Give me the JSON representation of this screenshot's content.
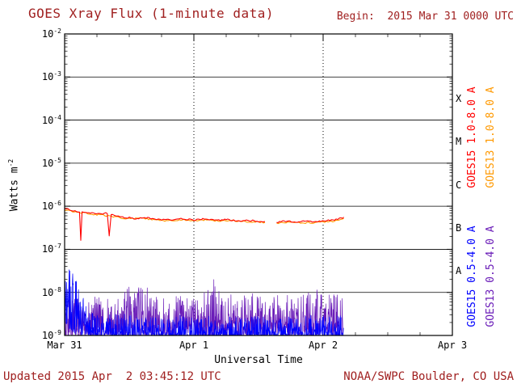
{
  "header": {
    "title": "GOES Xray Flux (1-minute data)",
    "begin_label": "Begin:  2015 Mar 31 0000 UTC"
  },
  "footer": {
    "updated": "Updated 2015 Apr  2 03:45:12 UTC",
    "source": "NOAA/SWPC Boulder, CO USA"
  },
  "colors": {
    "background": "#ffffff",
    "axis": "#000000",
    "title_text": "#a02020",
    "footer_text": "#a02020"
  },
  "chart_data": {
    "type": "line",
    "title": "GOES Xray Flux (1-minute data)",
    "subtitle_begin": "Begin:  2015 Mar 31 0000 UTC",
    "xlabel": "Universal Time",
    "ylabel": "Watts m-2",
    "x_axis": {
      "tick_labels": [
        "Mar 31",
        "Apr 1",
        "Apr 2",
        "Apr 3"
      ],
      "range_days": [
        0,
        3
      ],
      "minor_tick_hours": 6
    },
    "y_axis": {
      "scale": "log",
      "tick_base": "10",
      "tick_exponents": [
        -2,
        -3,
        -4,
        -5,
        -6,
        -7,
        -8,
        -9
      ],
      "unit_prefix": "Watts m",
      "unit_exponent": "-2",
      "range": [
        1e-09,
        0.01
      ]
    },
    "gridlines": {
      "horizontal_exponents": [
        -3,
        -4,
        -5,
        -6,
        -7,
        -8
      ],
      "vertical_days": [
        1,
        2
      ],
      "horizontal_style": "solid",
      "vertical_style": "dotted"
    },
    "flare_classes": [
      {
        "label": "X",
        "midpoint_exponent": -3.5
      },
      {
        "label": "M",
        "midpoint_exponent": -4.5
      },
      {
        "label": "C",
        "midpoint_exponent": -5.5
      },
      {
        "label": "B",
        "midpoint_exponent": -6.5
      },
      {
        "label": "A",
        "midpoint_exponent": -7.5
      }
    ],
    "data_end_day": 2.16,
    "series": [
      {
        "name": "GOES15 1.0-8.0 A",
        "color": "#ff0000",
        "channel": "long",
        "segments": [
          [
            [
              0.0,
              9e-07
            ],
            [
              0.04,
              8.2e-07
            ],
            [
              0.08,
              7.8e-07
            ],
            [
              0.115,
              7.5e-07
            ],
            [
              0.125,
              1.6e-07
            ],
            [
              0.135,
              7.2e-07
            ],
            [
              0.2,
              7e-07
            ],
            [
              0.27,
              6.6e-07
            ],
            [
              0.33,
              6.9e-07
            ],
            [
              0.345,
              2.1e-07
            ],
            [
              0.36,
              6.3e-07
            ],
            [
              0.45,
              5.6e-07
            ],
            [
              0.55,
              5.2e-07
            ],
            [
              0.62,
              5.5e-07
            ],
            [
              0.7,
              5e-07
            ],
            [
              0.8,
              4.8e-07
            ],
            [
              0.9,
              5.1e-07
            ],
            [
              1.0,
              4.8e-07
            ],
            [
              1.08,
              5.1e-07
            ],
            [
              1.17,
              4.7e-07
            ],
            [
              1.25,
              4.9e-07
            ],
            [
              1.33,
              4.6e-07
            ],
            [
              1.42,
              4.7e-07
            ],
            [
              1.5,
              4.5e-07
            ],
            [
              1.55,
              4.4e-07
            ]
          ],
          [
            [
              1.64,
              4.3e-07
            ],
            [
              1.72,
              4.5e-07
            ],
            [
              1.8,
              4.3e-07
            ],
            [
              1.88,
              4.5e-07
            ],
            [
              1.96,
              4.4e-07
            ],
            [
              2.04,
              4.7e-07
            ],
            [
              2.1,
              4.9e-07
            ],
            [
              2.14,
              5.3e-07
            ],
            [
              2.16,
              5.6e-07
            ]
          ]
        ]
      },
      {
        "name": "GOES13 1.0-8.0 A",
        "color": "#ff9900",
        "channel": "long",
        "segments": [
          [
            [
              0.0,
              8e-07
            ],
            [
              0.06,
              7.6e-07
            ],
            [
              0.12,
              7.2e-07
            ],
            [
              0.2,
              6.6e-07
            ],
            [
              0.3,
              6.2e-07
            ],
            [
              0.4,
              5.6e-07
            ],
            [
              0.5,
              5.1e-07
            ],
            [
              0.6,
              5.3e-07
            ],
            [
              0.7,
              4.8e-07
            ],
            [
              0.8,
              4.6e-07
            ],
            [
              0.9,
              4.9e-07
            ],
            [
              1.0,
              4.6e-07
            ],
            [
              1.1,
              4.8e-07
            ],
            [
              1.2,
              4.5e-07
            ],
            [
              1.3,
              4.6e-07
            ],
            [
              1.4,
              4.4e-07
            ],
            [
              1.5,
              4.3e-07
            ],
            [
              1.55,
              4.2e-07
            ]
          ],
          [
            [
              1.64,
              4.1e-07
            ],
            [
              1.75,
              4.3e-07
            ],
            [
              1.85,
              4.1e-07
            ],
            [
              1.95,
              4.2e-07
            ],
            [
              2.05,
              4.4e-07
            ],
            [
              2.12,
              4.7e-07
            ],
            [
              2.16,
              5.2e-07
            ]
          ]
        ]
      },
      {
        "name": "GOES15 0.5-4.0 A",
        "color": "#0000ff",
        "channel": "short",
        "band": [
          [
            0.0,
            2e-09,
            2.8e-08
          ],
          [
            0.03,
            1.5e-09,
            4.2e-08
          ],
          [
            0.06,
            1.2e-09,
            3e-08
          ],
          [
            0.1,
            1e-09,
            1.8e-08
          ],
          [
            0.14,
            1e-09,
            8e-09
          ],
          [
            0.2,
            9e-10,
            4e-09
          ],
          [
            0.3,
            9e-10,
            3e-09
          ],
          [
            0.4,
            9e-10,
            3.5e-09
          ],
          [
            0.5,
            9e-10,
            3e-09
          ],
          [
            0.6,
            9e-10,
            2.5e-09
          ],
          [
            0.7,
            9e-10,
            3e-09
          ],
          [
            0.8,
            9e-10,
            2.5e-09
          ],
          [
            0.9,
            9e-10,
            3e-09
          ],
          [
            1.0,
            9e-10,
            2.5e-09
          ],
          [
            1.1,
            9e-10,
            3e-09
          ],
          [
            1.2,
            9e-10,
            2.5e-09
          ],
          [
            1.3,
            9e-10,
            3e-09
          ],
          [
            1.4,
            9e-10,
            2.5e-09
          ],
          [
            1.5,
            9e-10,
            3e-09
          ],
          [
            1.6,
            9e-10,
            2.5e-09
          ],
          [
            1.7,
            9e-10,
            3e-09
          ],
          [
            1.8,
            9e-10,
            2.5e-09
          ],
          [
            1.9,
            9e-10,
            3e-09
          ],
          [
            2.0,
            9e-10,
            3.5e-09
          ],
          [
            2.16,
            9e-10,
            3e-09
          ]
        ]
      },
      {
        "name": "GOES13 0.5-4.0 A",
        "color": "#6a1cb8",
        "channel": "short",
        "band": [
          [
            0.0,
            1e-09,
            8e-09
          ],
          [
            0.05,
            1e-09,
            1e-08
          ],
          [
            0.1,
            1e-09,
            9e-09
          ],
          [
            0.15,
            1e-09,
            7e-09
          ],
          [
            0.2,
            1e-09,
            8e-09
          ],
          [
            0.25,
            1e-09,
            9e-09
          ],
          [
            0.3,
            1e-09,
            7e-09
          ],
          [
            0.35,
            1e-09,
            8e-09
          ],
          [
            0.4,
            1e-09,
            9e-09
          ],
          [
            0.45,
            1e-09,
            1.2e-08
          ],
          [
            0.5,
            1e-09,
            1.5e-08
          ],
          [
            0.55,
            1e-09,
            1e-08
          ],
          [
            0.6,
            1e-09,
            1.7e-08
          ],
          [
            0.65,
            1e-09,
            1.2e-08
          ],
          [
            0.7,
            1e-09,
            9e-09
          ],
          [
            0.75,
            1e-09,
            8e-09
          ],
          [
            0.8,
            1e-09,
            1e-08
          ],
          [
            0.85,
            1e-09,
            8e-09
          ],
          [
            0.9,
            1e-09,
            9e-09
          ],
          [
            0.95,
            1e-09,
            1e-08
          ],
          [
            1.0,
            1e-09,
            8e-09
          ],
          [
            1.05,
            1e-09,
            9e-09
          ],
          [
            1.1,
            1e-09,
            1.1e-08
          ],
          [
            1.15,
            1e-09,
            2.4e-08
          ],
          [
            1.2,
            1e-09,
            1e-08
          ],
          [
            1.25,
            1e-09,
            9e-09
          ],
          [
            1.3,
            1e-09,
            1e-08
          ],
          [
            1.35,
            1e-09,
            8e-09
          ],
          [
            1.4,
            1e-09,
            9e-09
          ],
          [
            1.45,
            1e-09,
            1e-08
          ],
          [
            1.5,
            1e-09,
            8e-09
          ],
          [
            1.55,
            1e-09,
            9e-09
          ],
          [
            1.6,
            1e-09,
            8e-09
          ],
          [
            1.65,
            1e-09,
            9e-09
          ],
          [
            1.7,
            1e-09,
            1e-08
          ],
          [
            1.75,
            1e-09,
            8e-09
          ],
          [
            1.8,
            1e-09,
            9e-09
          ],
          [
            1.85,
            1e-09,
            1e-08
          ],
          [
            1.9,
            1e-09,
            1.1e-08
          ],
          [
            1.95,
            1e-09,
            1.2e-08
          ],
          [
            2.0,
            1e-09,
            1e-08
          ],
          [
            2.05,
            1e-09,
            1.1e-08
          ],
          [
            2.1,
            1e-09,
            9e-09
          ],
          [
            2.16,
            1e-09,
            8e-09
          ]
        ]
      }
    ]
  }
}
